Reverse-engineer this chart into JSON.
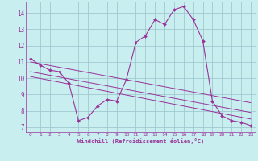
{
  "xlabel": "Windchill (Refroidissement éolien,°C)",
  "bg_color": "#c8eef0",
  "grid_color": "#a0c8d0",
  "line_color": "#993399",
  "xlim": [
    -0.5,
    23.5
  ],
  "ylim": [
    6.7,
    14.7
  ],
  "xticks": [
    0,
    1,
    2,
    3,
    4,
    5,
    6,
    7,
    8,
    9,
    10,
    11,
    12,
    13,
    14,
    15,
    16,
    17,
    18,
    19,
    20,
    21,
    22,
    23
  ],
  "yticks": [
    7,
    8,
    9,
    10,
    11,
    12,
    13,
    14
  ],
  "main_x": [
    0,
    1,
    2,
    3,
    4,
    5,
    6,
    7,
    8,
    9,
    10,
    11,
    12,
    13,
    14,
    15,
    16,
    17,
    18,
    19,
    20,
    21,
    22,
    23
  ],
  "main_y": [
    11.2,
    10.8,
    10.5,
    10.4,
    9.7,
    7.4,
    7.6,
    8.3,
    8.7,
    8.6,
    9.9,
    12.2,
    12.6,
    13.6,
    13.3,
    14.2,
    14.4,
    13.6,
    12.3,
    8.6,
    7.7,
    7.4,
    7.3,
    7.1
  ],
  "line1_x": [
    0,
    23
  ],
  "line1_y": [
    11.0,
    8.5
  ],
  "line2_x": [
    0,
    23
  ],
  "line2_y": [
    10.4,
    7.9
  ],
  "line3_x": [
    0,
    23
  ],
  "line3_y": [
    10.1,
    7.5
  ]
}
